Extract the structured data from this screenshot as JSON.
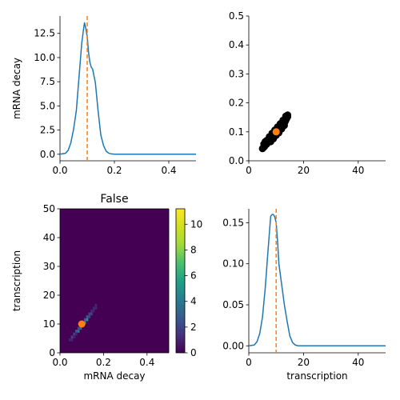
{
  "chart_data": [
    {
      "panel": "top-left",
      "type": "line",
      "xlabel": "",
      "ylabel": "mRNA decay",
      "xlim": [
        0,
        0.5
      ],
      "ylim": [
        -0.68,
        14.3
      ],
      "xticks": [
        0,
        0.2,
        0.4
      ],
      "xtick_labels": [
        "0.0",
        "0.2",
        "0.4"
      ],
      "yticks": [
        0,
        2.5,
        5,
        7.5,
        10,
        12.5
      ],
      "ytick_labels": [
        "0.0",
        "2.5",
        "5.0",
        "7.5",
        "10.0",
        "12.5"
      ],
      "x": [
        0.0,
        0.02,
        0.03,
        0.04,
        0.05,
        0.06,
        0.07,
        0.08,
        0.085,
        0.09,
        0.095,
        0.1,
        0.105,
        0.11,
        0.115,
        0.12,
        0.13,
        0.14,
        0.15,
        0.16,
        0.17,
        0.18,
        0.19,
        0.2,
        0.25,
        0.3,
        0.4,
        0.5
      ],
      "y": [
        0.0,
        0.1,
        0.4,
        1.2,
        2.6,
        4.5,
        8.0,
        11.5,
        12.6,
        13.6,
        13.0,
        12.2,
        10.5,
        9.5,
        9.0,
        8.8,
        7.4,
        4.5,
        2.0,
        0.9,
        0.3,
        0.1,
        0.03,
        0.0,
        0.0,
        0.0,
        0.0,
        0.0
      ],
      "vline": 0.1,
      "line_color": "#1f77b4",
      "vline_color": "#ff7f0e"
    },
    {
      "panel": "top-right",
      "type": "scatter",
      "xlabel": "",
      "ylabel": "",
      "xlim": [
        0,
        50
      ],
      "ylim": [
        0,
        0.5
      ],
      "xticks": [
        0,
        20,
        40
      ],
      "xtick_labels": [
        "0",
        "20",
        "40"
      ],
      "yticks": [
        0,
        0.1,
        0.2,
        0.3,
        0.4,
        0.5
      ],
      "ytick_labels": [
        "0.0",
        "0.1",
        "0.2",
        "0.3",
        "0.4",
        "0.5"
      ],
      "points": [
        [
          5.0,
          0.042
        ],
        [
          5.4,
          0.046
        ],
        [
          5.8,
          0.05
        ],
        [
          6.2,
          0.055
        ],
        [
          6.6,
          0.058
        ],
        [
          7.0,
          0.063
        ],
        [
          7.4,
          0.067
        ],
        [
          7.8,
          0.071
        ],
        [
          8.2,
          0.075
        ],
        [
          8.6,
          0.08
        ],
        [
          9.0,
          0.084
        ],
        [
          9.4,
          0.088
        ],
        [
          9.8,
          0.093
        ],
        [
          10.2,
          0.097
        ],
        [
          10.6,
          0.101
        ],
        [
          11.0,
          0.106
        ],
        [
          11.4,
          0.11
        ],
        [
          11.8,
          0.115
        ],
        [
          12.2,
          0.12
        ],
        [
          12.6,
          0.126
        ],
        [
          13.0,
          0.13
        ],
        [
          13.4,
          0.137
        ],
        [
          13.8,
          0.145
        ],
        [
          14.2,
          0.152
        ],
        [
          14.2,
          0.158
        ],
        [
          13.5,
          0.154
        ],
        [
          12.5,
          0.14
        ],
        [
          11.5,
          0.128
        ],
        [
          10.5,
          0.117
        ],
        [
          9.5,
          0.106
        ],
        [
          8.5,
          0.095
        ],
        [
          7.5,
          0.083
        ],
        [
          6.5,
          0.07
        ],
        [
          6.0,
          0.066
        ],
        [
          5.5,
          0.058
        ],
        [
          8.0,
          0.066
        ],
        [
          9.0,
          0.076
        ],
        [
          10.0,
          0.088
        ],
        [
          11.0,
          0.097
        ],
        [
          12.0,
          0.11
        ],
        [
          13.0,
          0.122
        ]
      ],
      "point_color": "#000000",
      "highlight_point": [
        10.0,
        0.1
      ],
      "highlight_color": "#ff7f0e"
    },
    {
      "panel": "bottom-left",
      "type": "heatmap",
      "title": "False",
      "xlabel": "mRNA decay",
      "ylabel": "transcription",
      "xlim": [
        0,
        0.5
      ],
      "ylim": [
        0,
        50
      ],
      "xticks": [
        0,
        0.2,
        0.4
      ],
      "xtick_labels": [
        "0.0",
        "0.2",
        "0.4"
      ],
      "yticks": [
        0,
        10,
        20,
        30,
        40,
        50
      ],
      "ytick_labels": [
        "0",
        "10",
        "20",
        "30",
        "40",
        "50"
      ],
      "bins": 50,
      "colormap": "viridis",
      "background_color": "#440154",
      "cells": [
        [
          0.04,
          4.0,
          1
        ],
        [
          0.05,
          5.0,
          2
        ],
        [
          0.06,
          6.0,
          2
        ],
        [
          0.07,
          7.0,
          3
        ],
        [
          0.07,
          6.0,
          1
        ],
        [
          0.08,
          7.0,
          4
        ],
        [
          0.08,
          8.0,
          2
        ],
        [
          0.09,
          8.0,
          3
        ],
        [
          0.09,
          9.0,
          5
        ],
        [
          0.1,
          9.0,
          4
        ],
        [
          0.1,
          10.0,
          6
        ],
        [
          0.11,
          10.0,
          4
        ],
        [
          0.11,
          11.0,
          3
        ],
        [
          0.12,
          11.0,
          5
        ],
        [
          0.12,
          12.0,
          3
        ],
        [
          0.13,
          12.0,
          2
        ],
        [
          0.13,
          13.0,
          2
        ],
        [
          0.14,
          13.0,
          2
        ],
        [
          0.14,
          14.0,
          1
        ],
        [
          0.15,
          14.0,
          1
        ],
        [
          0.15,
          15.0,
          1
        ],
        [
          0.16,
          15.0,
          1
        ],
        [
          0.06,
          5.0,
          1
        ],
        [
          0.05,
          4.0,
          1
        ],
        [
          0.16,
          16.0,
          1
        ]
      ],
      "highlight_point": [
        0.1,
        10.0
      ],
      "highlight_color": "#ff7f0e",
      "colorbar": {
        "min": 0,
        "max": 11.2,
        "ticks": [
          0,
          2,
          4,
          6,
          8,
          10
        ],
        "tick_labels": [
          "0",
          "2",
          "4",
          "6",
          "8",
          "10"
        ]
      }
    },
    {
      "panel": "bottom-right",
      "type": "line",
      "xlabel": "transcription",
      "ylabel": "",
      "xlim": [
        0,
        50
      ],
      "ylim": [
        -0.0085,
        0.167
      ],
      "xticks": [
        0,
        20,
        40
      ],
      "xtick_labels": [
        "0",
        "20",
        "40"
      ],
      "yticks": [
        0,
        0.05,
        0.1,
        0.15
      ],
      "ytick_labels": [
        "0.00",
        "0.05",
        "0.10",
        "0.15"
      ],
      "x": [
        0,
        2,
        3,
        4,
        5,
        6,
        7,
        8,
        8.5,
        9,
        9.5,
        10,
        10.5,
        11,
        12,
        13,
        14,
        15,
        16,
        17,
        18,
        20,
        30,
        40,
        50
      ],
      "y": [
        0.0,
        0.001,
        0.005,
        0.015,
        0.035,
        0.07,
        0.115,
        0.158,
        0.16,
        0.16,
        0.157,
        0.15,
        0.128,
        0.1,
        0.075,
        0.05,
        0.03,
        0.012,
        0.004,
        0.001,
        0.0,
        0.0,
        0.0,
        0.0,
        0.0
      ],
      "vline": 10,
      "line_color": "#1f77b4",
      "vline_color": "#ff7f0e"
    }
  ]
}
